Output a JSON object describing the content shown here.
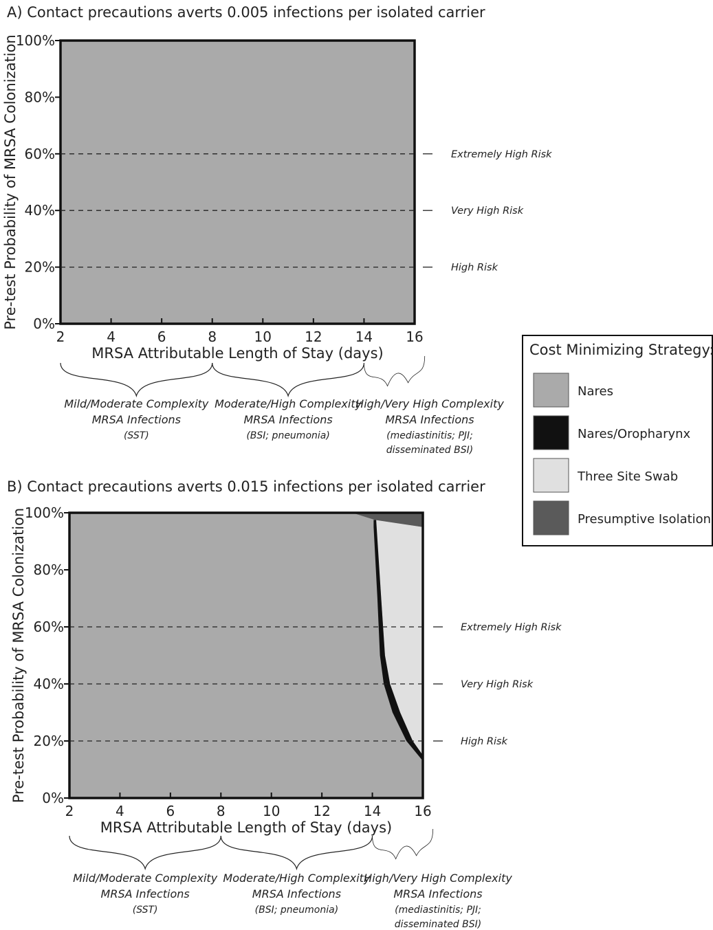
{
  "chart_data": [
    {
      "id": "A",
      "type": "area",
      "title": "A) Contact precautions averts 0.005 infections per isolated carrier",
      "xlabel": "MRSA Attributable Length of Stay (days)",
      "ylabel": "Pre-test Probability of MRSA Colonization",
      "xlim": [
        2,
        16
      ],
      "ylim": [
        0,
        100
      ],
      "xticks": [
        "2",
        "4",
        "6",
        "8",
        "10",
        "12",
        "14",
        "16"
      ],
      "yticks": [
        "0%",
        "20%",
        "40%",
        "60%",
        "80%",
        "100%"
      ],
      "regions": [
        {
          "strategy": "Nares",
          "color": "#aaaaaa",
          "polygon": [
            [
              2,
              0
            ],
            [
              16,
              0
            ],
            [
              16,
              100
            ],
            [
              2,
              100
            ]
          ]
        }
      ],
      "risk_lines": [
        {
          "y": 60,
          "label": "Extremely High Risk"
        },
        {
          "y": 40,
          "label": "Very High Risk"
        },
        {
          "y": 20,
          "label": "High Risk"
        }
      ],
      "groups": [
        {
          "from": 2,
          "to": 8,
          "line1": "Mild/Moderate Complexity",
          "line2": "MRSA Infections",
          "line3": "(SST)",
          "line4": ""
        },
        {
          "from": 8,
          "to": 14,
          "line1": "Moderate/High Complexity",
          "line2": "MRSA Infections",
          "line3": "(BSI; pneumonia)",
          "line4": ""
        },
        {
          "from": 14,
          "to": 16.4,
          "line1": "High/Very High Complexity",
          "line2": "MRSA Infections",
          "line3": "(mediastinitis; PJI;",
          "line4": "disseminated BSI)"
        }
      ]
    },
    {
      "id": "B",
      "type": "area",
      "title": "B) Contact precautions averts 0.015 infections per isolated carrier",
      "xlabel": "MRSA Attributable Length of Stay (days)",
      "ylabel": "Pre-test Probability of MRSA Colonization",
      "xlim": [
        2,
        16
      ],
      "ylim": [
        0,
        100
      ],
      "xticks": [
        "2",
        "4",
        "6",
        "8",
        "10",
        "12",
        "14",
        "16"
      ],
      "yticks": [
        "0%",
        "20%",
        "40%",
        "60%",
        "80%",
        "100%"
      ],
      "regions": [
        {
          "strategy": "Nares",
          "color": "#aaaaaa",
          "polygon": [
            [
              2,
              0
            ],
            [
              16,
              0
            ],
            [
              16,
              100
            ],
            [
              2,
              100
            ]
          ]
        },
        {
          "strategy": "Three Site Swab",
          "color": "#e0e0e0",
          "polygon": [
            [
              14.15,
              97.5
            ],
            [
              16,
              95
            ],
            [
              16,
              15
            ],
            [
              15.6,
              20
            ],
            [
              15.1,
              30
            ],
            [
              14.7,
              40
            ],
            [
              14.5,
              50
            ],
            [
              14.35,
              70
            ],
            [
              14.15,
              95
            ]
          ]
        },
        {
          "strategy": "Nares/Oropharynx",
          "color": "#111111",
          "polygon": [
            [
              14.05,
              97.5
            ],
            [
              14.15,
              97.5
            ],
            [
              14.35,
              70
            ],
            [
              14.5,
              50
            ],
            [
              14.7,
              40
            ],
            [
              15.1,
              30
            ],
            [
              15.6,
              20
            ],
            [
              16,
              15
            ],
            [
              16,
              13
            ],
            [
              15.35,
              20
            ],
            [
              14.8,
              30
            ],
            [
              14.45,
              40
            ],
            [
              14.3,
              50
            ],
            [
              14.2,
              70
            ],
            [
              14.05,
              95
            ]
          ]
        },
        {
          "strategy": "Presumptive Isolation",
          "color": "#5a5a5a",
          "polygon": [
            [
              13.2,
              100
            ],
            [
              16,
              100
            ],
            [
              16,
              95
            ],
            [
              14.1,
              97.5
            ]
          ]
        }
      ],
      "risk_lines": [
        {
          "y": 60,
          "label": "Extremely High Risk"
        },
        {
          "y": 40,
          "label": "Very High Risk"
        },
        {
          "y": 20,
          "label": "High Risk"
        }
      ],
      "groups": [
        {
          "from": 2,
          "to": 8,
          "line1": "Mild/Moderate Complexity",
          "line2": "MRSA Infections",
          "line3": "(SST)",
          "line4": ""
        },
        {
          "from": 8,
          "to": 14,
          "line1": "Moderate/High Complexity",
          "line2": "MRSA Infections",
          "line3": "(BSI; pneumonia)",
          "line4": ""
        },
        {
          "from": 14,
          "to": 16.4,
          "line1": "High/Very High Complexity",
          "line2": "MRSA Infections",
          "line3": "(mediastinitis; PJI;",
          "line4": "disseminated BSI)"
        }
      ]
    }
  ],
  "legend": {
    "title": "Cost Minimizing Strategy:",
    "items": [
      {
        "label": "Nares",
        "color": "#aaaaaa"
      },
      {
        "label": "Nares/Oropharynx",
        "color": "#111111"
      },
      {
        "label": "Three Site Swab",
        "color": "#e0e0e0"
      },
      {
        "label": "Presumptive Isolation",
        "color": "#5a5a5a"
      }
    ]
  }
}
